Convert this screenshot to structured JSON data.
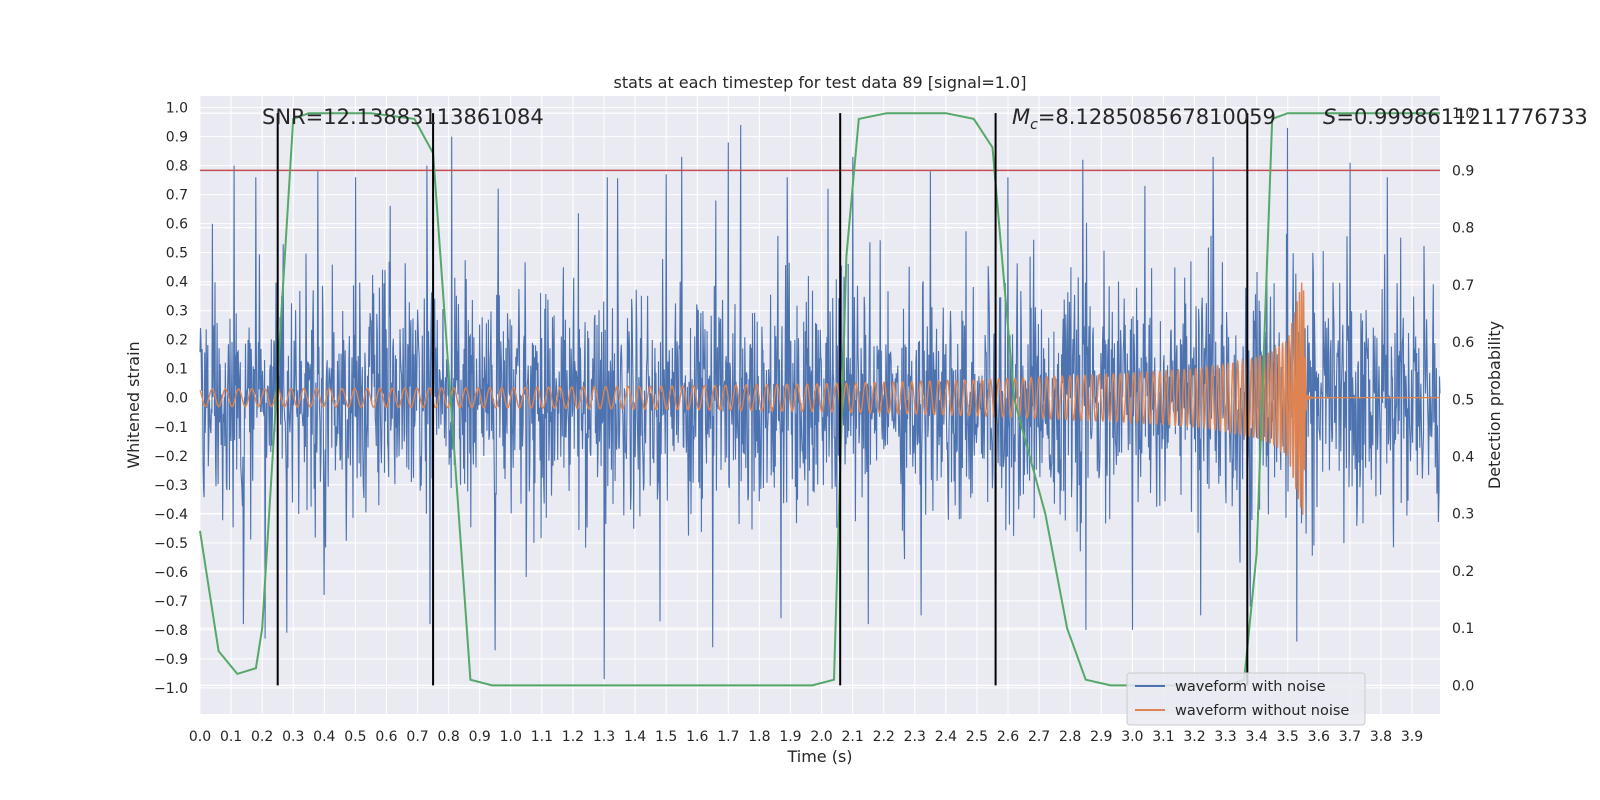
{
  "chart_data": {
    "type": "line",
    "title": "stats at each timestep for test data 89 [signal=1.0]",
    "xlabel": "Time (s)",
    "ylabel_left": "Whitened strain",
    "ylabel_right": "Detection probability",
    "xlim": [
      0.0,
      3.99
    ],
    "ylim_left": [
      -1.09,
      1.04
    ],
    "ylim_right": [
      -0.05,
      1.03
    ],
    "x_ticks": [
      "0.0",
      "0.1",
      "0.2",
      "0.3",
      "0.4",
      "0.5",
      "0.6",
      "0.7",
      "0.8",
      "0.9",
      "1.0",
      "1.1",
      "1.2",
      "1.3",
      "1.4",
      "1.5",
      "1.6",
      "1.7",
      "1.8",
      "1.9",
      "2.0",
      "2.1",
      "2.2",
      "2.3",
      "2.4",
      "2.5",
      "2.6",
      "2.7",
      "2.8",
      "2.9",
      "3.0",
      "3.1",
      "3.2",
      "3.3",
      "3.4",
      "3.5",
      "3.6",
      "3.7",
      "3.8",
      "3.9"
    ],
    "y_ticks_left": [
      "1.0",
      "0.9",
      "0.8",
      "0.7",
      "0.6",
      "0.5",
      "0.4",
      "0.3",
      "0.2",
      "0.1",
      "0.0",
      "−0.1",
      "−0.2",
      "−0.3",
      "−0.4",
      "−0.5",
      "−0.6",
      "−0.7",
      "−0.8",
      "−0.9",
      "−1.0"
    ],
    "y_ticks_right": [
      "1.0",
      "0.9",
      "0.8",
      "0.7",
      "0.6",
      "0.5",
      "0.4",
      "0.3",
      "0.2",
      "0.1",
      "0.0"
    ],
    "grid": true,
    "background": "#eaeaf2",
    "annotations": {
      "snr": "SNR=12.13883113861084",
      "mc_symbol": "M",
      "mc_sub": "c",
      "mc_value": "=8.128508567810059",
      "s_symbol": "S",
      "s_value": "=0.9998611211776733"
    },
    "legend": {
      "position": "lower-right",
      "entries": [
        {
          "label": "waveform with noise",
          "color": "#4c72b0"
        },
        {
          "label": "waveform without noise",
          "color": "#dd8452"
        }
      ]
    },
    "threshold": {
      "axis": "right",
      "value": 0.9,
      "color": "#c44e52"
    },
    "vertical_markers_s": [
      0.25,
      0.75,
      2.06,
      2.56,
      3.37
    ],
    "noisy_waveform": {
      "color": "#4c72b0",
      "description_range": [
        -1.0,
        1.0
      ],
      "peak_x": [
        0.04,
        0.11,
        0.14,
        0.18,
        0.28,
        0.38,
        0.5,
        0.73,
        0.81,
        0.96,
        1.31,
        1.5,
        1.55,
        1.66,
        1.7,
        1.74,
        1.89,
        2.02,
        2.1,
        2.35,
        2.6,
        2.84,
        3.04,
        3.26,
        3.37,
        3.5,
        3.7,
        3.82
      ],
      "peak_y": [
        0.6,
        0.8,
        0.78,
        0.76,
        0.73,
        0.78,
        0.76,
        0.8,
        0.9,
        0.72,
        0.76,
        0.77,
        0.83,
        0.68,
        0.88,
        0.94,
        0.76,
        0.72,
        0.83,
        0.78,
        0.76,
        0.82,
        0.73,
        0.83,
        0.7,
        0.93,
        0.81,
        0.76
      ],
      "trough_x": [
        0.14,
        0.21,
        0.28,
        0.74,
        0.95,
        1.3,
        1.48,
        1.65,
        1.87,
        2.15,
        2.32,
        2.56,
        2.85,
        3.0,
        3.22,
        3.38,
        3.53
      ],
      "trough_y": [
        -0.78,
        -0.83,
        -0.81,
        -0.78,
        -0.87,
        -0.97,
        -0.77,
        -0.86,
        -0.76,
        -0.78,
        -0.75,
        -0.78,
        -0.8,
        -0.8,
        -0.75,
        -0.72,
        -0.84
      ]
    },
    "clean_waveform": {
      "color": "#dd8452",
      "t": [
        0.0,
        0.5,
        1.0,
        1.5,
        2.0,
        2.5,
        3.0,
        3.2,
        3.3,
        3.4,
        3.45,
        3.5,
        3.55,
        3.56,
        3.99
      ],
      "amplitude": [
        0.03,
        0.032,
        0.035,
        0.04,
        0.048,
        0.062,
        0.085,
        0.1,
        0.115,
        0.14,
        0.16,
        0.2,
        0.42,
        0.01,
        0.005
      ],
      "offset": 0.0,
      "post_merger_value": 0.0,
      "merger_time": 3.56
    },
    "detection_probability": {
      "color": "#55a868",
      "x": [
        0.0,
        0.06,
        0.12,
        0.18,
        0.2,
        0.3,
        0.35,
        0.45,
        0.55,
        0.69,
        0.75,
        0.8,
        0.87,
        0.94,
        1.5,
        1.97,
        2.04,
        2.08,
        2.12,
        2.21,
        2.4,
        2.49,
        2.55,
        2.62,
        2.72,
        2.79,
        2.85,
        2.93,
        3.3,
        3.36,
        3.4,
        3.45,
        3.5,
        3.55,
        3.99
      ],
      "y": [
        0.27,
        0.06,
        0.02,
        0.03,
        0.1,
        0.99,
        1.0,
        1.0,
        1.0,
        0.99,
        0.93,
        0.55,
        0.01,
        0.0,
        0.0,
        0.0,
        0.01,
        0.75,
        0.99,
        1.0,
        1.0,
        0.99,
        0.94,
        0.5,
        0.3,
        0.1,
        0.01,
        0.0,
        0.0,
        0.01,
        0.23,
        0.99,
        1.0,
        1.0,
        1.0
      ]
    }
  }
}
